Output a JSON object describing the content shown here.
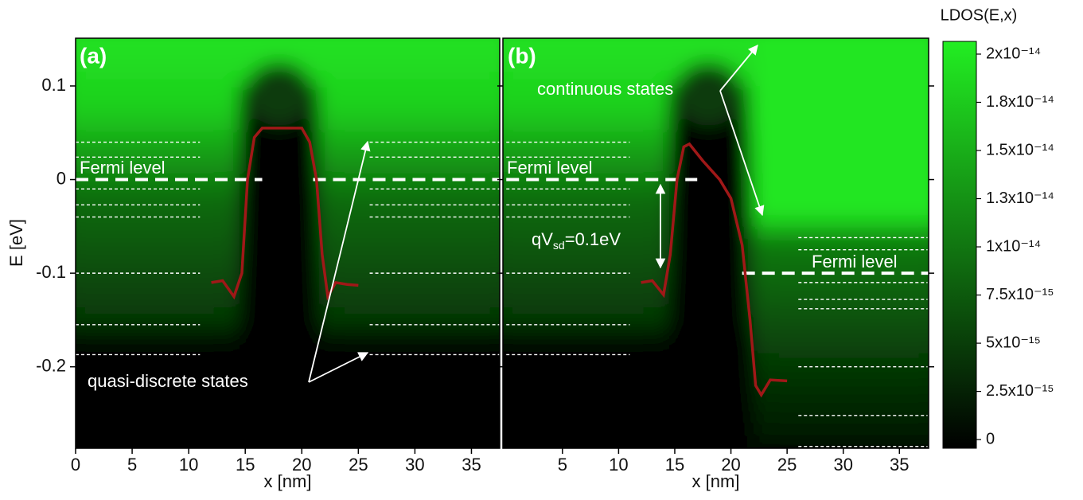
{
  "chart_data": [
    {
      "type": "heatmap",
      "panel_label": "(a)",
      "x_label": "x [nm]",
      "y_label": "E [eV]",
      "xlim": [
        0,
        37.5
      ],
      "ylim": [
        -0.287,
        0.151
      ],
      "xticks": [
        0,
        5,
        10,
        15,
        20,
        25,
        30,
        35
      ],
      "yticks": [
        0.1,
        0,
        -0.1,
        -0.2
      ],
      "fermi_levels": [
        0
      ],
      "fermi_labels": [
        "Fermi level"
      ],
      "left_levels": [
        0.04,
        0.024,
        -0.01,
        -0.027,
        -0.04,
        -0.1,
        -0.155,
        -0.187
      ],
      "right_levels": [
        0.04,
        0.024,
        -0.01,
        -0.027,
        -0.04,
        -0.1,
        -0.155,
        -0.187
      ],
      "series": [
        {
          "color": "#a01818",
          "x": [
            12,
            13,
            14,
            14.7,
            15.2,
            15.8,
            16.5,
            20,
            20.7,
            21.3,
            21.8,
            22.3,
            23,
            24,
            25
          ],
          "values": [
            -0.11,
            -0.108,
            -0.125,
            -0.1,
            0,
            0.045,
            0.055,
            0.055,
            0.04,
            0,
            -0.08,
            -0.125,
            -0.11,
            -0.112,
            -0.113
          ]
        }
      ],
      "annotations": [
        "quasi-discrete states"
      ]
    },
    {
      "type": "heatmap",
      "panel_label": "(b)",
      "x_label": "x [nm]",
      "xlim": [
        -0.3,
        37.6
      ],
      "ylim": [
        -0.287,
        0.151
      ],
      "xticks": [
        5,
        10,
        15,
        20,
        25,
        30,
        35
      ],
      "yticks": [
        0.1,
        0,
        -0.1,
        -0.2
      ],
      "fermi_levels": [
        0,
        -0.1
      ],
      "fermi_labels": [
        "Fermi level",
        "Fermi level"
      ],
      "left_levels": [
        0.04,
        0.024,
        -0.01,
        -0.027,
        -0.04,
        -0.1,
        -0.155,
        -0.187
      ],
      "right_levels": [
        -0.062,
        -0.075,
        -0.11,
        -0.128,
        -0.138,
        -0.2,
        -0.252,
        -0.285
      ],
      "series": [
        {
          "color": "#a01818",
          "x": [
            12,
            13,
            14,
            14.6,
            15.2,
            15.8,
            16.3,
            17.5,
            19,
            20,
            21,
            21.7,
            22.2,
            22.7,
            23.5,
            25
          ],
          "values": [
            -0.11,
            -0.108,
            -0.123,
            -0.08,
            0,
            0.035,
            0.038,
            0.02,
            0,
            -0.02,
            -0.07,
            -0.15,
            -0.22,
            -0.23,
            -0.214,
            -0.215
          ]
        }
      ],
      "annotations": [
        "continuous states"
      ],
      "voltage_label": [
        "qV",
        "sd",
        "=0.1eV"
      ]
    },
    {
      "type": "colorbar",
      "title": "LDOS(E,x)",
      "zlim": [
        -4.5e-16,
        2.066e-14
      ],
      "ticks": [
        0,
        {
          "value": 2.5e-15,
          "label": "2.5x10⁻¹⁵"
        },
        {
          "value": 5e-15,
          "label": "5x10⁻¹⁵"
        },
        {
          "value": 7.5e-15,
          "label": "7.5x10⁻¹⁵"
        },
        {
          "value": 1e-14,
          "label": "1x10⁻¹⁴"
        },
        {
          "value": 1.25e-14,
          "label": "1.3x10⁻¹⁴"
        },
        {
          "value": 1.5e-14,
          "label": "1.5x10⁻¹⁴"
        },
        {
          "value": 1.75e-14,
          "label": "1.8x10⁻¹⁴"
        },
        {
          "value": 2e-14,
          "label": "2x10⁻¹⁴"
        }
      ]
    }
  ]
}
